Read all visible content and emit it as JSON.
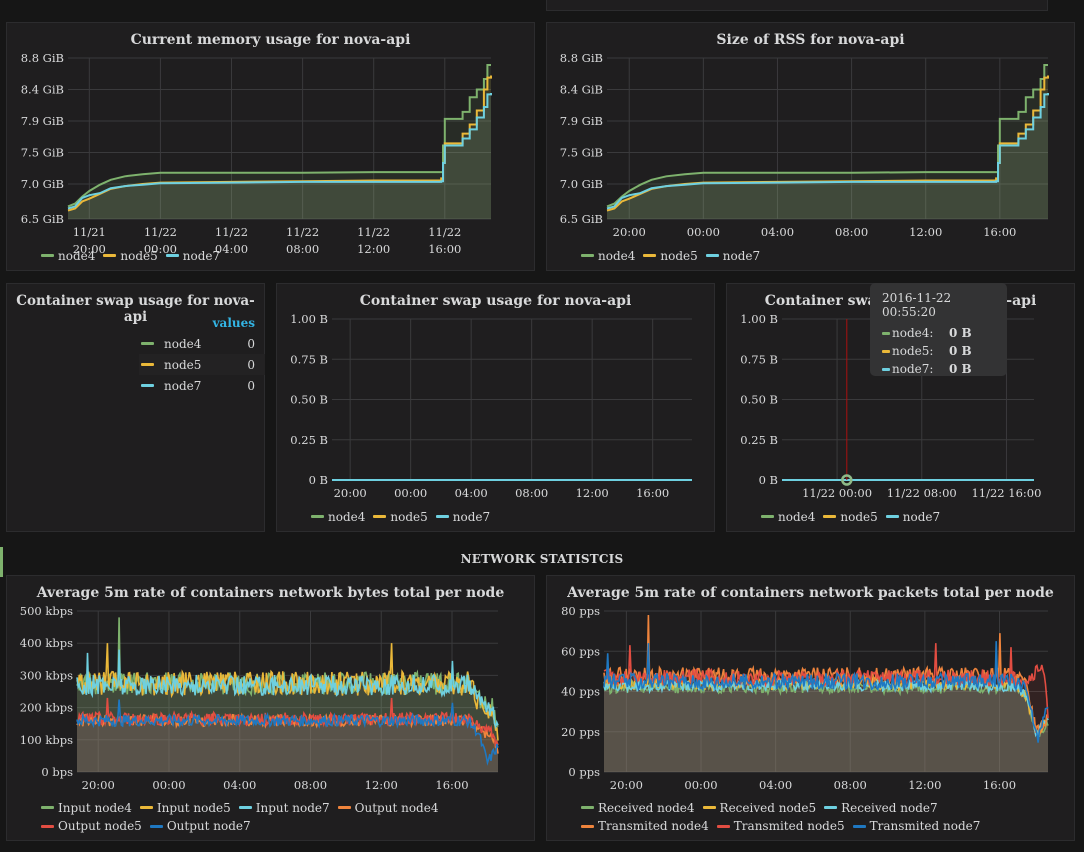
{
  "colors": {
    "node4": "#7eb26d",
    "node5": "#eab839",
    "node7": "#6ed0e0",
    "output4": "#ef843c",
    "output5": "#e24d42",
    "output7": "#1f78c1",
    "crosshair": "#aa1111",
    "section_marker": "#7eb26d",
    "values_header": "#33b5e5"
  },
  "section": {
    "title": "NETWORK STATISTCIS"
  },
  "panels": {
    "memory": {
      "title": "Current memory usage for nova-api"
    },
    "rss": {
      "title": "Size of RSS for nova-api"
    },
    "swap_table": {
      "title": "Container swap usage for nova-api",
      "header": "values",
      "rows": [
        {
          "name": "node4",
          "value": "0"
        },
        {
          "name": "node5",
          "value": "0"
        },
        {
          "name": "node7",
          "value": "0"
        }
      ]
    },
    "swap_graph": {
      "title": "Container swap usage for nova-api"
    },
    "swap_graph2": {
      "title": "Container swap usage for nova-api",
      "tooltip": {
        "time": "2016-11-22 00:55:20",
        "rows": [
          {
            "name": "node4:",
            "value": "0 B"
          },
          {
            "name": "node5:",
            "value": "0 B"
          },
          {
            "name": "node7:",
            "value": "0 B"
          }
        ]
      }
    },
    "net_bytes": {
      "title": "Average 5m rate of containers network bytes total per node"
    },
    "net_packets": {
      "title": "Average 5m rate of containers network packets total per node"
    }
  },
  "chart_data": [
    {
      "id": "memory",
      "type": "area",
      "title": "Current memory usage for nova-api",
      "ylabel": "",
      "ylim": [
        6.5,
        8.8
      ],
      "yticks": [
        "6.5 GiB",
        "7.0 GiB",
        "7.5 GiB",
        "7.9 GiB",
        "8.4 GiB",
        "8.8 GiB"
      ],
      "ytick_values": [
        6.5,
        7.0,
        7.45,
        7.9,
        8.35,
        8.8
      ],
      "xrange_hours": [
        18.8,
        42.6
      ],
      "xticks": [
        {
          "h": 20,
          "label": [
            "11/21",
            "20:00"
          ]
        },
        {
          "h": 24,
          "label": [
            "11/22",
            "00:00"
          ]
        },
        {
          "h": 28,
          "label": [
            "11/22",
            "04:00"
          ]
        },
        {
          "h": 32,
          "label": [
            "11/22",
            "08:00"
          ]
        },
        {
          "h": 36,
          "label": [
            "11/22",
            "12:00"
          ]
        },
        {
          "h": 40,
          "label": [
            "11/22",
            "16:00"
          ]
        }
      ],
      "grid": true,
      "legend": [
        "node4",
        "node5",
        "node7"
      ],
      "series": [
        {
          "name": "node4",
          "x": [
            18.8,
            19.2,
            19.6,
            20.0,
            20.6,
            21.2,
            22.0,
            23.0,
            24.0,
            28.0,
            32.0,
            36.0,
            39.8,
            39.9,
            40.0,
            40.8,
            41.0,
            41.4,
            41.8,
            42.2,
            42.4,
            42.6
          ],
          "values": [
            6.68,
            6.72,
            6.82,
            6.9,
            6.99,
            7.06,
            7.11,
            7.14,
            7.16,
            7.16,
            7.16,
            7.17,
            7.17,
            7.55,
            7.93,
            7.93,
            8.03,
            8.24,
            8.35,
            8.5,
            8.7,
            8.7
          ]
        },
        {
          "name": "node5",
          "x": [
            18.8,
            19.2,
            19.6,
            20.0,
            20.6,
            21.2,
            22.0,
            23.0,
            24.0,
            28.0,
            32.0,
            36.0,
            39.8,
            39.9,
            40.0,
            40.8,
            41.0,
            41.4,
            41.8,
            42.2,
            42.4,
            42.6
          ],
          "values": [
            6.62,
            6.65,
            6.75,
            6.79,
            6.86,
            6.93,
            6.97,
            7.0,
            7.02,
            7.03,
            7.04,
            7.05,
            7.08,
            7.3,
            7.58,
            7.58,
            7.72,
            7.85,
            8.05,
            8.35,
            8.52,
            8.55
          ]
        },
        {
          "name": "node7",
          "x": [
            18.8,
            19.2,
            19.6,
            20.0,
            20.6,
            21.2,
            22.0,
            23.0,
            24.0,
            28.0,
            32.0,
            36.0,
            39.8,
            39.9,
            40.0,
            40.8,
            41.0,
            41.4,
            41.8,
            42.2,
            42.4,
            42.6
          ],
          "values": [
            6.65,
            6.68,
            6.8,
            6.84,
            6.87,
            6.94,
            6.97,
            6.99,
            7.01,
            7.02,
            7.03,
            7.03,
            7.04,
            7.3,
            7.55,
            7.55,
            7.65,
            7.78,
            7.95,
            8.1,
            8.28,
            8.3
          ]
        }
      ]
    },
    {
      "id": "rss",
      "type": "area",
      "title": "Size of RSS for nova-api",
      "ylim": [
        6.5,
        8.8
      ],
      "yticks": [
        "6.5 GiB",
        "7.0 GiB",
        "7.5 GiB",
        "7.9 GiB",
        "8.4 GiB",
        "8.8 GiB"
      ],
      "ytick_values": [
        6.5,
        7.0,
        7.45,
        7.9,
        8.35,
        8.8
      ],
      "xrange_hours": [
        18.8,
        42.6
      ],
      "xticks": [
        {
          "h": 20,
          "label": [
            "20:00"
          ]
        },
        {
          "h": 24,
          "label": [
            "00:00"
          ]
        },
        {
          "h": 28,
          "label": [
            "04:00"
          ]
        },
        {
          "h": 32,
          "label": [
            "08:00"
          ]
        },
        {
          "h": 36,
          "label": [
            "12:00"
          ]
        },
        {
          "h": 40,
          "label": [
            "16:00"
          ]
        }
      ],
      "grid": true,
      "legend": [
        "node4",
        "node5",
        "node7"
      ],
      "series_ref": "memory"
    },
    {
      "id": "swap_graph",
      "type": "line",
      "title": "Container swap usage for nova-api",
      "ylim": [
        0,
        1
      ],
      "yticks": [
        "0 B",
        "0.25 B",
        "0.50 B",
        "0.75 B",
        "1.00 B"
      ],
      "ytick_values": [
        0,
        0.25,
        0.5,
        0.75,
        1.0
      ],
      "xrange_hours": [
        18.8,
        42.6
      ],
      "xticks": [
        {
          "h": 20,
          "label": [
            "20:00"
          ]
        },
        {
          "h": 24,
          "label": [
            "00:00"
          ]
        },
        {
          "h": 28,
          "label": [
            "04:00"
          ]
        },
        {
          "h": 32,
          "label": [
            "08:00"
          ]
        },
        {
          "h": 36,
          "label": [
            "12:00"
          ]
        },
        {
          "h": 40,
          "label": [
            "16:00"
          ]
        }
      ],
      "grid": true,
      "legend": [
        "node4",
        "node5",
        "node7"
      ],
      "series": [
        {
          "name": "node4",
          "x": [
            18.8,
            42.6
          ],
          "values": [
            0,
            0
          ]
        },
        {
          "name": "node5",
          "x": [
            18.8,
            42.6
          ],
          "values": [
            0,
            0
          ]
        },
        {
          "name": "node7",
          "x": [
            18.8,
            42.6
          ],
          "values": [
            0,
            0
          ]
        }
      ]
    },
    {
      "id": "swap_graph2",
      "type": "line",
      "title": "Container swap usage for nova-api",
      "ylim": [
        0,
        1
      ],
      "yticks": [
        "0 B",
        "0.25 B",
        "0.50 B",
        "0.75 B",
        "1.00 B"
      ],
      "ytick_values": [
        0,
        0.25,
        0.5,
        0.75,
        1.0
      ],
      "xrange_hours": [
        18.8,
        42.6
      ],
      "xticks": [
        {
          "h": 24,
          "label": [
            "11/22 00:00"
          ]
        },
        {
          "h": 32,
          "label": [
            "11/22 08:00"
          ]
        },
        {
          "h": 40,
          "label": [
            "11/22 16:00"
          ]
        }
      ],
      "grid": true,
      "legend": [
        "node4",
        "node5",
        "node7"
      ],
      "crosshair_hour": 24.92,
      "series": [
        {
          "name": "node4",
          "x": [
            18.8,
            42.6
          ],
          "values": [
            0,
            0
          ]
        },
        {
          "name": "node5",
          "x": [
            18.8,
            42.6
          ],
          "values": [
            0,
            0
          ]
        },
        {
          "name": "node7",
          "x": [
            18.8,
            42.6
          ],
          "values": [
            0,
            0
          ]
        }
      ]
    },
    {
      "id": "net_bytes",
      "type": "area",
      "title": "Average 5m rate of containers network bytes total per node",
      "ylim": [
        0,
        500
      ],
      "yunit": "kbps",
      "yticks": [
        "0 bps",
        "100 kbps",
        "200 kbps",
        "300 kbps",
        "400 kbps",
        "500 kbps"
      ],
      "ytick_values": [
        0,
        100,
        200,
        300,
        400,
        500
      ],
      "xrange_hours": [
        18.8,
        42.6
      ],
      "xticks": [
        {
          "h": 20,
          "label": [
            "20:00"
          ]
        },
        {
          "h": 24,
          "label": [
            "00:00"
          ]
        },
        {
          "h": 28,
          "label": [
            "04:00"
          ]
        },
        {
          "h": 32,
          "label": [
            "08:00"
          ]
        },
        {
          "h": 36,
          "label": [
            "12:00"
          ]
        },
        {
          "h": 40,
          "label": [
            "16:00"
          ]
        }
      ],
      "grid": true,
      "legend": [
        "Input node4",
        "Input node5",
        "Input node7",
        "Output node4",
        "Output node5",
        "Output node7"
      ],
      "series": [
        {
          "name": "Input node4",
          "color_key": "node4",
          "base": 275,
          "noise": 35,
          "spikes": [
            [
              21.2,
              480
            ]
          ],
          "tail": [
            [
              41.5,
              230
            ],
            [
              42.3,
              200
            ],
            [
              42.6,
              110
            ]
          ]
        },
        {
          "name": "Input node5",
          "color_key": "node5",
          "base": 275,
          "noise": 38,
          "spikes": [
            [
              20.5,
              400
            ],
            [
              36.6,
              400
            ]
          ],
          "tail": [
            [
              41.5,
              220
            ],
            [
              42.3,
              180
            ],
            [
              42.6,
              100
            ]
          ]
        },
        {
          "name": "Input node7",
          "color_key": "node7",
          "base": 270,
          "noise": 32,
          "spikes": [
            [
              19.4,
              370
            ],
            [
              21.2,
              380
            ],
            [
              40.0,
              345
            ]
          ],
          "tail": [
            [
              41.5,
              230
            ],
            [
              42.3,
              190
            ],
            [
              42.6,
              120
            ]
          ]
        },
        {
          "name": "Output node4",
          "color_key": "output4",
          "base": 160,
          "noise": 18,
          "spikes": [],
          "tail": [
            [
              41.5,
              130
            ],
            [
              42.3,
              110
            ],
            [
              42.6,
              60
            ]
          ]
        },
        {
          "name": "Output node5",
          "color_key": "output5",
          "base": 165,
          "noise": 20,
          "spikes": [
            [
              20.5,
              230
            ],
            [
              36.6,
              230
            ]
          ],
          "tail": [
            [
              41.5,
              140
            ],
            [
              42.3,
              120
            ],
            [
              42.6,
              70
            ]
          ]
        },
        {
          "name": "Output node7",
          "color_key": "output7",
          "base": 160,
          "noise": 18,
          "spikes": [
            [
              21.2,
              225
            ],
            [
              40.0,
              215
            ]
          ],
          "tail": [
            [
              41.5,
              120
            ],
            [
              42.0,
              30
            ],
            [
              42.6,
              80
            ]
          ]
        }
      ]
    },
    {
      "id": "net_packets",
      "type": "area",
      "title": "Average 5m rate of containers network packets total per node",
      "ylim": [
        0,
        80
      ],
      "yunit": "pps",
      "yticks": [
        "0 pps",
        "20 pps",
        "40 pps",
        "60 pps",
        "80 pps"
      ],
      "ytick_values": [
        0,
        20,
        40,
        60,
        80
      ],
      "xrange_hours": [
        18.8,
        42.6
      ],
      "xticks": [
        {
          "h": 20,
          "label": [
            "20:00"
          ]
        },
        {
          "h": 24,
          "label": [
            "00:00"
          ]
        },
        {
          "h": 28,
          "label": [
            "04:00"
          ]
        },
        {
          "h": 32,
          "label": [
            "08:00"
          ]
        },
        {
          "h": 36,
          "label": [
            "12:00"
          ]
        },
        {
          "h": 40,
          "label": [
            "16:00"
          ]
        }
      ],
      "grid": true,
      "legend": [
        "Received node4",
        "Received node5",
        "Received node7",
        "Transmited node4",
        "Transmited node5",
        "Transmited node7"
      ],
      "series": [
        {
          "name": "Received node4",
          "color_key": "node4",
          "base": 42,
          "noise": 3,
          "spikes": [],
          "tail": [
            [
              41.5,
              35
            ],
            [
              42.0,
              17
            ],
            [
              42.6,
              25
            ]
          ]
        },
        {
          "name": "Received node5",
          "color_key": "node5",
          "base": 44,
          "noise": 3,
          "spikes": [],
          "tail": [
            [
              41.5,
              36
            ],
            [
              42.0,
              18
            ],
            [
              42.6,
              27
            ]
          ]
        },
        {
          "name": "Received node7",
          "color_key": "node7",
          "base": 43,
          "noise": 3,
          "spikes": [],
          "tail": [
            [
              41.5,
              36
            ],
            [
              42.0,
              18
            ],
            [
              42.6,
              28
            ]
          ]
        },
        {
          "name": "Transmited node4",
          "color_key": "output4",
          "base": 48,
          "noise": 4,
          "spikes": [
            [
              21.2,
              78
            ],
            [
              40.0,
              69
            ]
          ],
          "tail": [
            [
              41.5,
              42
            ],
            [
              42.0,
              20
            ],
            [
              42.6,
              28
            ]
          ]
        },
        {
          "name": "Transmited node5",
          "color_key": "output5",
          "base": 47,
          "noise": 4,
          "spikes": [
            [
              20.2,
              63
            ],
            [
              36.6,
              64
            ],
            [
              40.6,
              62
            ]
          ],
          "tail": [
            [
              41.5,
              45
            ],
            [
              42.3,
              53
            ],
            [
              42.6,
              30
            ]
          ]
        },
        {
          "name": "Transmited node7",
          "color_key": "output7",
          "base": 45,
          "noise": 4,
          "spikes": [
            [
              19.0,
              59
            ],
            [
              21.2,
              64
            ],
            [
              39.8,
              65
            ]
          ],
          "tail": [
            [
              41.5,
              40
            ],
            [
              42.0,
              16
            ],
            [
              42.6,
              32
            ]
          ]
        }
      ]
    }
  ]
}
